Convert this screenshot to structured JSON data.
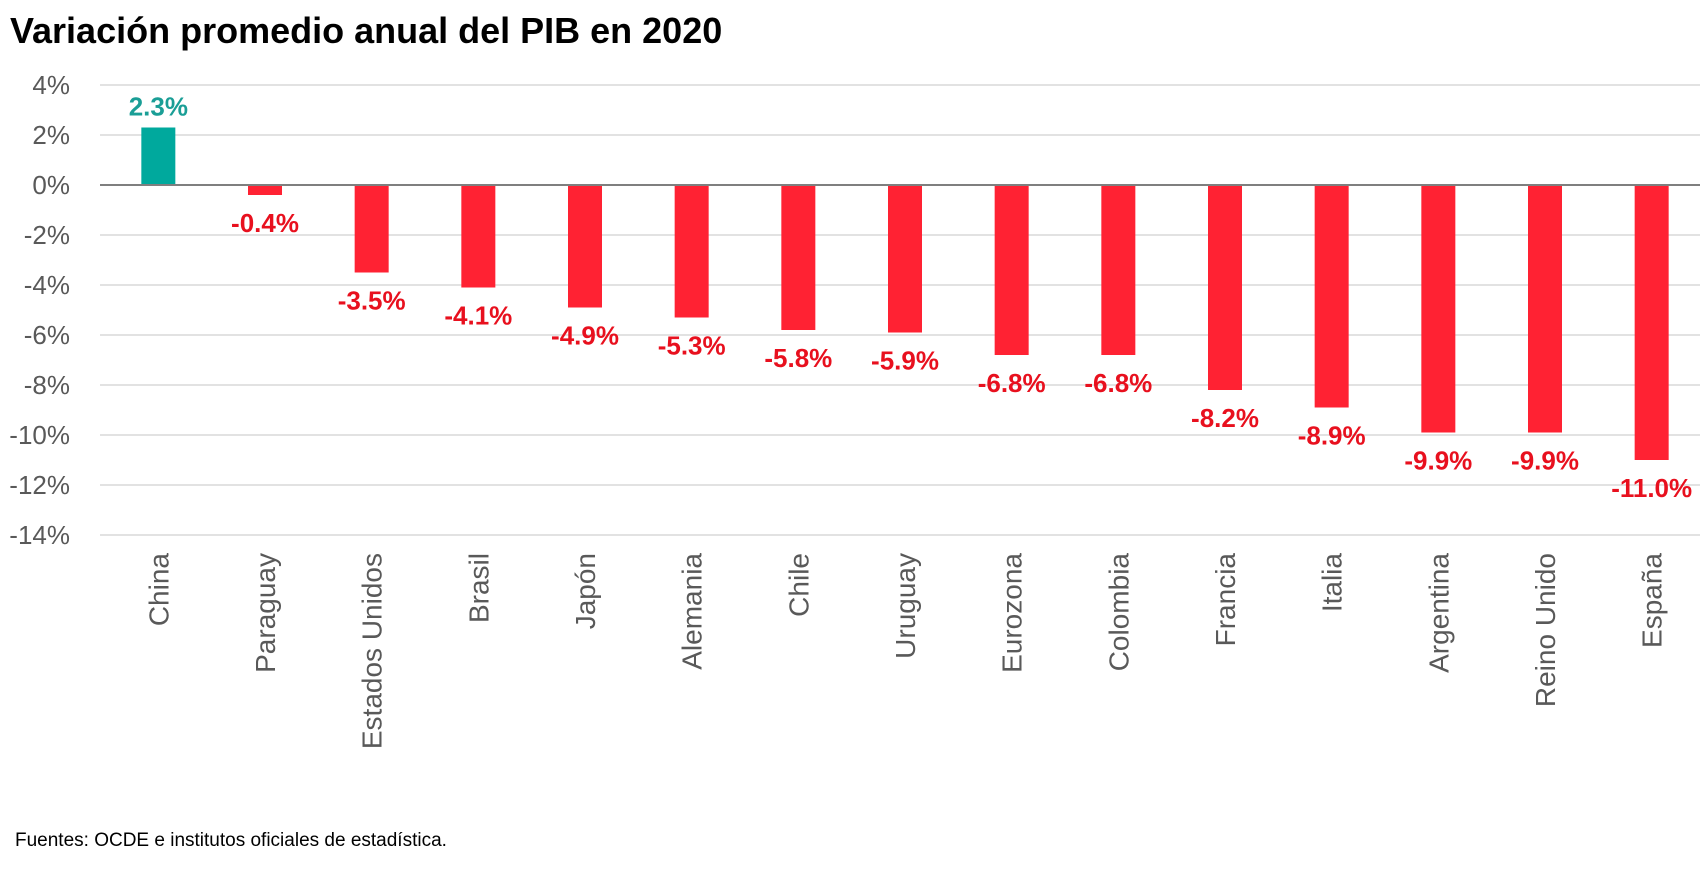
{
  "title": "Variación promedio anual del PIB en 2020",
  "footer": "Fuentes: OCDE e institutos oficiales de estadística.",
  "chart_data": {
    "type": "bar",
    "title": "Variación promedio anual del PIB en 2020",
    "xlabel": "",
    "ylabel": "",
    "categories": [
      "China",
      "Paraguay",
      "Estados Unidos",
      "Brasil",
      "Japón",
      "Alemania",
      "Chile",
      "Uruguay",
      "Eurozona",
      "Colombia",
      "Francia",
      "Italia",
      "Argentina",
      "Reino Unido",
      "España"
    ],
    "values": [
      2.3,
      -0.4,
      -3.5,
      -4.1,
      -4.9,
      -5.3,
      -5.8,
      -5.9,
      -6.8,
      -6.8,
      -8.2,
      -8.9,
      -9.9,
      -9.9,
      -11.0
    ],
    "data_labels": [
      "2.3%",
      "-0.4%",
      "-3.5%",
      "-4.1%",
      "-4.9%",
      "-5.3%",
      "-5.8%",
      "-5.9%",
      "-6.8%",
      "-6.8%",
      "-8.2%",
      "-8.9%",
      "-9.9%",
      "-9.9%",
      "-11.0%"
    ],
    "ylim": [
      -14,
      4
    ],
    "yticks": [
      4,
      2,
      0,
      -2,
      -4,
      -6,
      -8,
      -10,
      -12,
      -14
    ],
    "ytick_labels": [
      "4%",
      "2%",
      "0%",
      "-2%",
      "-4%",
      "-6%",
      "-8%",
      "-10%",
      "-12%",
      "-14%"
    ],
    "grid": true,
    "legend": "none",
    "colors": {
      "positive": "#00A99D",
      "negative": "#FF2233",
      "positive_label": "#1A9E96",
      "negative_label": "#E8101E",
      "grid": "#D9D9D9",
      "axis": "#7F7F7F",
      "tick_text": "#595959"
    }
  }
}
